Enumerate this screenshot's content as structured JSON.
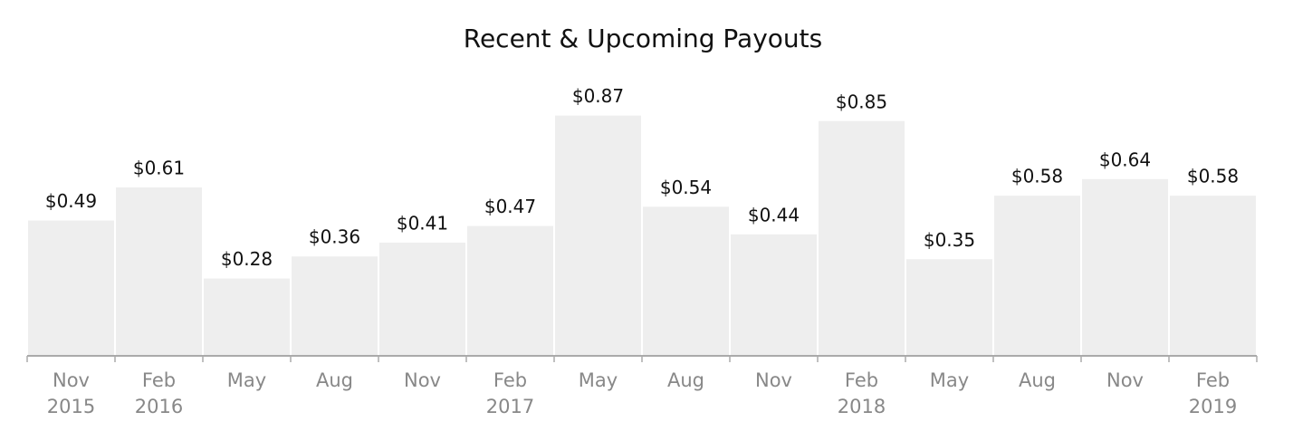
{
  "chart_data": {
    "type": "bar",
    "title": "Recent & Upcoming Payouts",
    "categories": [
      "Nov\n2015",
      "Feb\n2016",
      "May",
      "Aug",
      "Nov",
      "Feb\n2017",
      "May",
      "Aug",
      "Nov",
      "Feb\n2018",
      "May",
      "Aug",
      "Nov",
      "Feb\n2019"
    ],
    "values": [
      0.49,
      0.61,
      0.28,
      0.36,
      0.41,
      0.47,
      0.87,
      0.54,
      0.44,
      0.85,
      0.35,
      0.58,
      0.64,
      0.58
    ],
    "value_labels": [
      "$0.49",
      "$0.61",
      "$0.28",
      "$0.36",
      "$0.41",
      "$0.47",
      "$0.87",
      "$0.54",
      "$0.44",
      "$0.85",
      "$0.35",
      "$0.58",
      "$0.64",
      "$0.58"
    ],
    "color": "#eeeeee",
    "ylim": [
      0,
      1
    ]
  }
}
